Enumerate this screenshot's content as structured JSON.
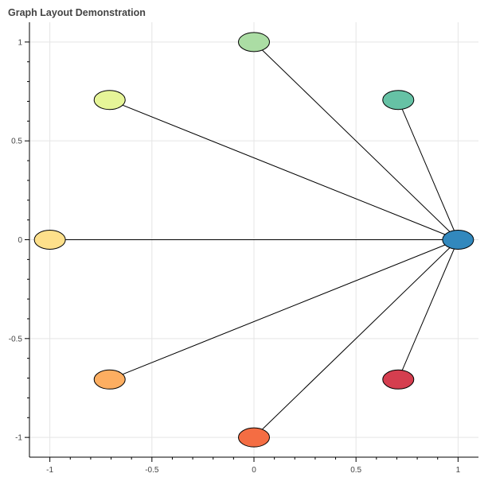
{
  "chart_data": {
    "type": "scatter",
    "title": "Graph Layout Demonstration",
    "xlabel": "",
    "ylabel": "",
    "xlim": [
      -1.1,
      1.1
    ],
    "ylim": [
      -1.1,
      1.1
    ],
    "x_ticks": [
      -1,
      -0.5,
      0,
      0.5,
      1
    ],
    "y_ticks": [
      -1,
      -0.5,
      0,
      0.5,
      1
    ],
    "x_tick_labels": [
      "-1",
      "-0.5",
      "0",
      "0.5",
      "1"
    ],
    "y_tick_labels": [
      "-1",
      "-0.5",
      "0",
      "0.5",
      "1"
    ],
    "grid": true,
    "nodes": [
      {
        "x": 1,
        "y": 0,
        "color": "#3288bd"
      },
      {
        "x": 0.7071,
        "y": 0.7071,
        "color": "#66c2a5"
      },
      {
        "x": 0,
        "y": 1,
        "color": "#abdda4"
      },
      {
        "x": -0.7071,
        "y": 0.7071,
        "color": "#e6f598"
      },
      {
        "x": -1,
        "y": 0,
        "color": "#fee08b"
      },
      {
        "x": -0.7071,
        "y": -0.7071,
        "color": "#fdae61"
      },
      {
        "x": 0,
        "y": -1,
        "color": "#f46d43"
      },
      {
        "x": 0.7071,
        "y": -0.7071,
        "color": "#d53e4f"
      }
    ],
    "edges": [
      [
        0,
        1
      ],
      [
        0,
        2
      ],
      [
        0,
        3
      ],
      [
        0,
        4
      ],
      [
        0,
        5
      ],
      [
        0,
        6
      ],
      [
        0,
        7
      ]
    ]
  }
}
